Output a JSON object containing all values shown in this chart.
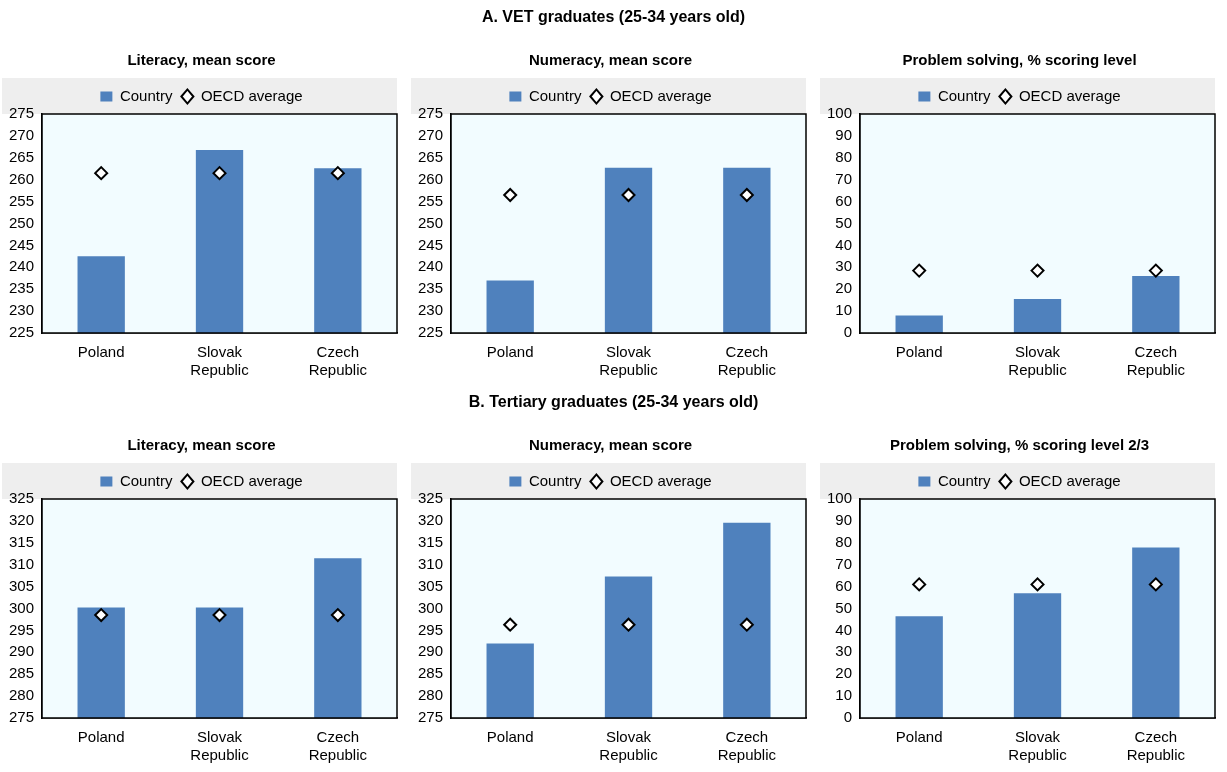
{
  "chart_data": [
    {
      "type": "bar",
      "annotations": [
        "A. VET graduates (25-34 years old)"
      ],
      "title": "Literacy, mean score",
      "categories": [
        "Poland",
        "Slovak Republic",
        "Czech Republic"
      ],
      "ylim": [
        225,
        275
      ],
      "yticks": [
        225,
        230,
        235,
        240,
        245,
        250,
        255,
        260,
        265,
        270,
        275
      ],
      "legend": "top",
      "marker": "diamond",
      "series": [
        {
          "name": "Country",
          "color": "#4f81bd",
          "values": [
            242.5,
            266.8,
            262.6
          ]
        },
        {
          "name": "OECD average",
          "type": "scatter",
          "color": "#ffffff",
          "values": [
            261.5,
            261.5,
            261.5
          ]
        }
      ]
    },
    {
      "type": "bar",
      "title": "Numeracy, mean score",
      "categories": [
        "Poland",
        "Slovak Republic",
        "Czech Republic"
      ],
      "ylim": [
        225,
        275
      ],
      "yticks": [
        225,
        230,
        235,
        240,
        245,
        250,
        255,
        260,
        265,
        270,
        275
      ],
      "legend": "top",
      "marker": "diamond",
      "series": [
        {
          "name": "Country",
          "color": "#4f81bd",
          "values": [
            237,
            262.7,
            262.7
          ]
        },
        {
          "name": "OECD average",
          "type": "scatter",
          "color": "#ffffff",
          "values": [
            256.5,
            256.5,
            256.5
          ]
        }
      ]
    },
    {
      "type": "bar",
      "title": "Problem solving, % scoring level",
      "categories": [
        "Poland",
        "Slovak Republic",
        "Czech Republic"
      ],
      "ylim": [
        0,
        100
      ],
      "yticks": [
        0,
        10,
        20,
        30,
        40,
        50,
        60,
        70,
        80,
        90,
        100
      ],
      "legend": "top",
      "marker": "diamond",
      "series": [
        {
          "name": "Country",
          "color": "#4f81bd",
          "values": [
            8,
            15.5,
            26
          ]
        },
        {
          "name": "OECD average",
          "type": "scatter",
          "color": "#ffffff",
          "values": [
            28.5,
            28.5,
            28.5
          ]
        }
      ]
    },
    {
      "type": "bar",
      "annotations": [
        "B. Tertiary graduates (25-34 years old)"
      ],
      "title": "Literacy, mean score",
      "categories": [
        "Poland",
        "Slovak Republic",
        "Czech Republic"
      ],
      "ylim": [
        275,
        325
      ],
      "yticks": [
        275,
        280,
        285,
        290,
        295,
        300,
        305,
        310,
        315,
        320,
        325
      ],
      "legend": "top",
      "marker": "diamond",
      "series": [
        {
          "name": "Country",
          "color": "#4f81bd",
          "values": [
            300.2,
            300.2,
            311.5
          ]
        },
        {
          "name": "OECD average",
          "type": "scatter",
          "color": "#ffffff",
          "values": [
            298.5,
            298.5,
            298.5
          ]
        }
      ]
    },
    {
      "type": "bar",
      "title": "Numeracy, mean score",
      "categories": [
        "Poland",
        "Slovak Republic",
        "Czech Republic"
      ],
      "ylim": [
        275,
        325
      ],
      "yticks": [
        275,
        280,
        285,
        290,
        295,
        300,
        305,
        310,
        315,
        320,
        325
      ],
      "legend": "top",
      "marker": "diamond",
      "series": [
        {
          "name": "Country",
          "color": "#4f81bd",
          "values": [
            292,
            307.3,
            319.6
          ]
        },
        {
          "name": "OECD average",
          "type": "scatter",
          "color": "#ffffff",
          "values": [
            296.3,
            296.3,
            296.3
          ]
        }
      ]
    },
    {
      "type": "bar",
      "title": "Problem solving, % scoring level 2/3",
      "categories": [
        "Poland",
        "Slovak Republic",
        "Czech Republic"
      ],
      "ylim": [
        0,
        100
      ],
      "yticks": [
        0,
        10,
        20,
        30,
        40,
        50,
        60,
        70,
        80,
        90,
        100
      ],
      "legend": "top",
      "marker": "diamond",
      "series": [
        {
          "name": "Country",
          "color": "#4f81bd",
          "values": [
            46.5,
            57,
            77.8
          ]
        },
        {
          "name": "OECD average",
          "type": "scatter",
          "color": "#ffffff",
          "values": [
            61,
            61,
            61
          ]
        }
      ]
    }
  ]
}
